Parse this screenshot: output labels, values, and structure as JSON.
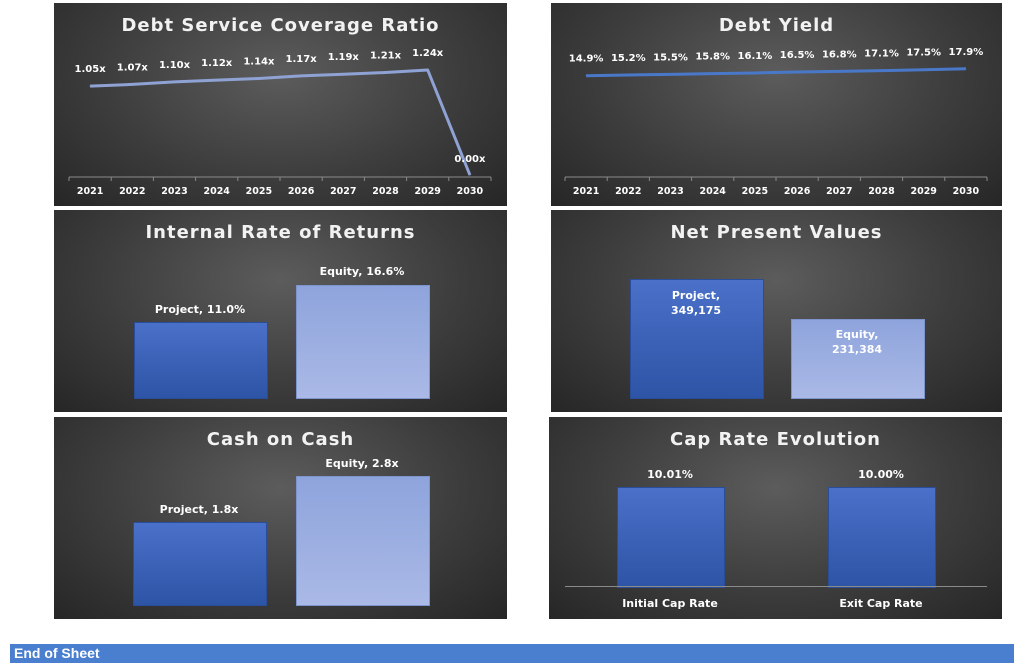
{
  "footer": {
    "text": "End of Sheet"
  },
  "chart_data": [
    {
      "id": "dscr",
      "type": "line",
      "title": "Debt Service Coverage Ratio",
      "x": [
        "2021",
        "2022",
        "2023",
        "2024",
        "2025",
        "2026",
        "2027",
        "2028",
        "2029",
        "2030"
      ],
      "values": [
        1.05,
        1.07,
        1.1,
        1.12,
        1.14,
        1.17,
        1.19,
        1.21,
        1.24,
        0.0
      ],
      "labels": [
        "1.05x",
        "1.07x",
        "1.10x",
        "1.12x",
        "1.14x",
        "1.17x",
        "1.19x",
        "1.21x",
        "1.24x",
        "0.00x"
      ],
      "color": "#8fa2d4"
    },
    {
      "id": "debt-yield",
      "type": "line",
      "title": "Debt Yield",
      "x": [
        "2021",
        "2022",
        "2023",
        "2024",
        "2025",
        "2026",
        "2027",
        "2028",
        "2029",
        "2030"
      ],
      "values": [
        14.9,
        15.2,
        15.5,
        15.8,
        16.1,
        16.5,
        16.8,
        17.1,
        17.5,
        17.9
      ],
      "labels": [
        "14.9%",
        "15.2%",
        "15.5%",
        "15.8%",
        "16.1%",
        "16.5%",
        "16.8%",
        "17.1%",
        "17.5%",
        "17.9%"
      ],
      "color": "#4a78c9"
    },
    {
      "id": "irr",
      "type": "bar",
      "title": "Internal Rate of Returns",
      "categories": [
        "Project",
        "Equity"
      ],
      "values": [
        11.0,
        16.6
      ],
      "labels": [
        "Project, 11.0%",
        "Equity, 16.6%"
      ]
    },
    {
      "id": "npv",
      "type": "bar",
      "title": "Net Present Values",
      "categories": [
        "Project",
        "Equity"
      ],
      "values": [
        349175,
        231384
      ],
      "labels": [
        "Project,\n349,175",
        "Equity,\n231,384"
      ]
    },
    {
      "id": "coc",
      "type": "bar",
      "title": "Cash on Cash",
      "categories": [
        "Project",
        "Equity"
      ],
      "values": [
        1.8,
        2.8
      ],
      "labels": [
        "Project, 1.8x",
        "Equity, 2.8x"
      ]
    },
    {
      "id": "cap-rate",
      "type": "bar",
      "title": "Cap Rate Evolution",
      "categories": [
        "Initial Cap Rate",
        "Exit Cap Rate"
      ],
      "values": [
        10.01,
        10.0
      ],
      "labels": [
        "10.01%",
        "10.00%"
      ]
    }
  ]
}
